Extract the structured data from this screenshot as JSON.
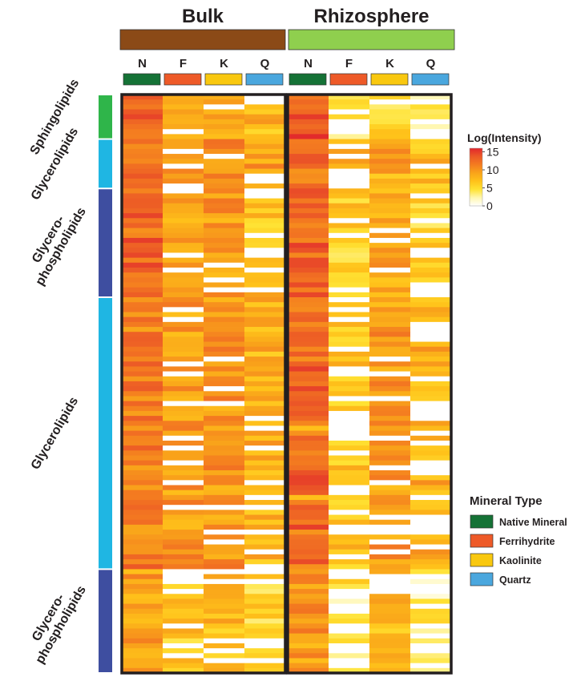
{
  "chart_data": {
    "type": "heatmap",
    "groups": [
      {
        "name": "Bulk",
        "color": "#8b4a17"
      },
      {
        "name": "Rhizosphere",
        "color": "#8fcf4e"
      }
    ],
    "columns": [
      "N",
      "F",
      "K",
      "Q",
      "N",
      "F",
      "K",
      "Q"
    ],
    "column_colors": [
      "#157236",
      "#ee5a28",
      "#f9c80f",
      "#4aa7de",
      "#157236",
      "#ee5a28",
      "#f9c80f",
      "#4aa7de"
    ],
    "row_groups": [
      {
        "name": "Sphingolipids",
        "rows": [
          0,
          9
        ],
        "color": "#2fb54a"
      },
      {
        "name": "Glycerolipids",
        "rows": [
          9,
          19
        ],
        "color": "#1fb6e3"
      },
      {
        "name": "Glycero-\nphospholipids",
        "rows": [
          19,
          41
        ],
        "color": "#3e4ea0"
      },
      {
        "name": "Glycerolipids",
        "rows": [
          41,
          96
        ],
        "color": "#1fb6e3"
      },
      {
        "name": "Glycero-\nphospholipids",
        "rows": [
          96,
          117
        ],
        "color": "#3e4ea0"
      }
    ],
    "row_count": 117,
    "legend": {
      "title": "Log(Intensity)",
      "ticks": [
        15,
        10,
        5,
        0
      ],
      "range": [
        0,
        16
      ],
      "colors": [
        "#ffffff",
        "#fff7b0",
        "#ffe233",
        "#ffc21a",
        "#f9a41a",
        "#f47c20",
        "#ec5a26",
        "#e1262d"
      ]
    },
    "mineral_legend": {
      "title": "Mineral Type",
      "items": [
        {
          "label": "Native Mineral",
          "color": "#157236"
        },
        {
          "label": "Ferrihydrite",
          "color": "#ee5a28"
        },
        {
          "label": "Kaolinite",
          "color": "#f9c80f"
        },
        {
          "label": "Quartz",
          "color": "#4aa7de"
        }
      ]
    }
  }
}
